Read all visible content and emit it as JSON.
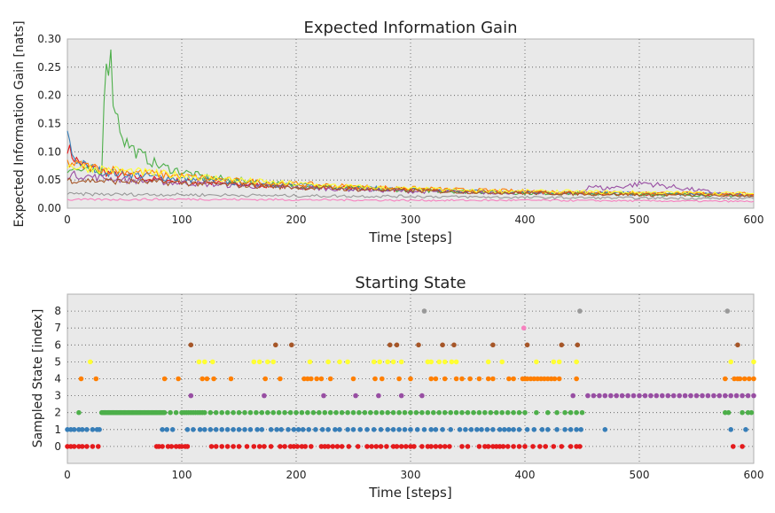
{
  "chart_data": [
    {
      "type": "line",
      "title": "Expected Information Gain",
      "xlabel": "Time [steps]",
      "ylabel": "Expected Information Gain [nats]",
      "xlim": [
        0,
        600
      ],
      "ylim": [
        0,
        0.3
      ],
      "x_ticks": [
        "0",
        "100",
        "200",
        "300",
        "400",
        "500",
        "600"
      ],
      "y_ticks": [
        "0.00",
        "0.05",
        "0.10",
        "0.15",
        "0.20",
        "0.25",
        "0.30"
      ],
      "grid": true,
      "series": [
        {
          "color": "#e41a1c",
          "points": [
            [
              0,
              0.11
            ],
            [
              5,
              0.09
            ],
            [
              15,
              0.075
            ],
            [
              40,
              0.06
            ],
            [
              80,
              0.05
            ],
            [
              150,
              0.042
            ],
            [
              250,
              0.035
            ],
            [
              350,
              0.03
            ],
            [
              450,
              0.027
            ],
            [
              550,
              0.024
            ],
            [
              600,
              0.023
            ]
          ]
        },
        {
          "color": "#377eb8",
          "points": [
            [
              0,
              0.145
            ],
            [
              3,
              0.1
            ],
            [
              10,
              0.08
            ],
            [
              30,
              0.065
            ],
            [
              80,
              0.055
            ],
            [
              150,
              0.045
            ],
            [
              250,
              0.036
            ],
            [
              350,
              0.03
            ],
            [
              450,
              0.027
            ],
            [
              550,
              0.025
            ],
            [
              600,
              0.024
            ]
          ]
        },
        {
          "color": "#4daf4a",
          "points": [
            [
              0,
              0.07
            ],
            [
              20,
              0.065
            ],
            [
              30,
              0.06
            ],
            [
              31,
              0.12
            ],
            [
              33,
              0.3
            ],
            [
              35,
              0.24
            ],
            [
              37,
              0.29
            ],
            [
              40,
              0.2
            ],
            [
              45,
              0.15
            ],
            [
              50,
              0.12
            ],
            [
              60,
              0.1
            ],
            [
              80,
              0.075
            ],
            [
              120,
              0.055
            ],
            [
              200,
              0.04
            ],
            [
              300,
              0.032
            ],
            [
              400,
              0.027
            ],
            [
              500,
              0.025
            ],
            [
              600,
              0.022
            ]
          ]
        },
        {
          "color": "#984ea3",
          "points": [
            [
              0,
              0.06
            ],
            [
              50,
              0.05
            ],
            [
              150,
              0.04
            ],
            [
              300,
              0.03
            ],
            [
              450,
              0.026
            ],
            [
              455,
              0.04
            ],
            [
              470,
              0.035
            ],
            [
              490,
              0.04
            ],
            [
              505,
              0.045
            ],
            [
              520,
              0.04
            ],
            [
              550,
              0.032
            ],
            [
              575,
              0.025
            ],
            [
              600,
              0.022
            ]
          ]
        },
        {
          "color": "#ff7f00",
          "points": [
            [
              0,
              0.08
            ],
            [
              30,
              0.07
            ],
            [
              80,
              0.06
            ],
            [
              150,
              0.048
            ],
            [
              250,
              0.038
            ],
            [
              350,
              0.032
            ],
            [
              450,
              0.028
            ],
            [
              550,
              0.026
            ],
            [
              600,
              0.025
            ]
          ]
        },
        {
          "color": "#ffff33",
          "points": [
            [
              0,
              0.075
            ],
            [
              40,
              0.068
            ],
            [
              100,
              0.058
            ],
            [
              180,
              0.045
            ],
            [
              260,
              0.037
            ],
            [
              350,
              0.031
            ],
            [
              450,
              0.029
            ],
            [
              550,
              0.027
            ],
            [
              600,
              0.026
            ]
          ]
        },
        {
          "color": "#a65628",
          "points": [
            [
              0,
              0.05
            ],
            [
              40,
              0.048
            ],
            [
              100,
              0.045
            ],
            [
              200,
              0.037
            ],
            [
              300,
              0.031
            ],
            [
              400,
              0.027
            ],
            [
              500,
              0.024
            ],
            [
              600,
              0.022
            ]
          ]
        },
        {
          "color": "#f781bf",
          "points": [
            [
              0,
              0.015
            ],
            [
              100,
              0.016
            ],
            [
              200,
              0.015
            ],
            [
              300,
              0.014
            ],
            [
              400,
              0.014
            ],
            [
              500,
              0.013
            ],
            [
              600,
              0.012
            ]
          ]
        },
        {
          "color": "#999999",
          "points": [
            [
              0,
              0.025
            ],
            [
              100,
              0.024
            ],
            [
              200,
              0.022
            ],
            [
              300,
              0.021
            ],
            [
              400,
              0.019
            ],
            [
              500,
              0.018
            ],
            [
              600,
              0.017
            ]
          ]
        }
      ]
    },
    {
      "type": "scatter",
      "title": "Starting State",
      "xlabel": "Time [steps]",
      "ylabel": "Sampled State [index]",
      "xlim": [
        0,
        600
      ],
      "ylim": [
        -1,
        9
      ],
      "x_ticks": [
        "0",
        "100",
        "200",
        "300",
        "400",
        "500",
        "600"
      ],
      "y_ticks": [
        "0",
        "1",
        "2",
        "3",
        "4",
        "5",
        "6",
        "7",
        "8"
      ],
      "grid": true,
      "states": [
        {
          "index": 0,
          "color": "#e41a1c",
          "x": [
            0,
            3,
            6,
            10,
            13,
            17,
            22,
            27,
            78,
            80,
            83,
            88,
            91,
            95,
            98,
            100,
            103,
            105,
            126,
            130,
            135,
            140,
            145,
            150,
            157,
            163,
            168,
            172,
            178,
            186,
            190,
            195,
            198,
            201,
            205,
            208,
            213,
            222,
            225,
            228,
            232,
            236,
            240,
            246,
            254,
            262,
            266,
            270,
            274,
            279,
            285,
            288,
            292,
            296,
            300,
            303,
            310,
            315,
            318,
            322,
            326,
            330,
            334,
            345,
            350,
            360,
            365,
            368,
            372,
            375,
            378,
            381,
            385,
            390,
            395,
            400,
            407,
            413,
            418,
            425,
            432,
            440,
            445,
            448,
            582,
            590
          ]
        },
        {
          "index": 1,
          "color": "#377eb8",
          "x": [
            0,
            3,
            6,
            10,
            13,
            17,
            22,
            26,
            28,
            83,
            87,
            92,
            105,
            110,
            116,
            120,
            125,
            130,
            135,
            140,
            145,
            150,
            155,
            160,
            166,
            170,
            178,
            183,
            187,
            193,
            198,
            202,
            206,
            211,
            217,
            223,
            228,
            234,
            238,
            245,
            250,
            256,
            262,
            268,
            274,
            280,
            285,
            290,
            295,
            300,
            306,
            312,
            318,
            322,
            328,
            335,
            343,
            348,
            353,
            358,
            362,
            367,
            372,
            378,
            382,
            386,
            390,
            395,
            402,
            408,
            415,
            420,
            428,
            435,
            440,
            445,
            449,
            470,
            580,
            593
          ]
        },
        {
          "index": 2,
          "color": "#4daf4a",
          "x": [
            10,
            30,
            31,
            32,
            33,
            34,
            35,
            36,
            37,
            38,
            39,
            40,
            41,
            42,
            43,
            44,
            45,
            46,
            47,
            48,
            49,
            50,
            51,
            52,
            53,
            54,
            55,
            56,
            57,
            58,
            59,
            60,
            61,
            62,
            63,
            64,
            65,
            66,
            67,
            68,
            69,
            70,
            71,
            72,
            73,
            74,
            75,
            76,
            77,
            78,
            79,
            80,
            81,
            82,
            83,
            84,
            85,
            90,
            95,
            100,
            102,
            104,
            106,
            108,
            110,
            112,
            114,
            116,
            118,
            120,
            125,
            130,
            135,
            140,
            145,
            150,
            155,
            160,
            165,
            170,
            175,
            180,
            185,
            190,
            195,
            200,
            205,
            210,
            215,
            220,
            225,
            230,
            235,
            240,
            245,
            250,
            255,
            260,
            265,
            270,
            275,
            280,
            285,
            290,
            295,
            300,
            305,
            310,
            315,
            320,
            325,
            330,
            335,
            340,
            345,
            350,
            355,
            360,
            365,
            370,
            375,
            380,
            385,
            390,
            395,
            400,
            410,
            420,
            428,
            435,
            440,
            445,
            450,
            575,
            578,
            590,
            595,
            598
          ]
        },
        {
          "index": 3,
          "color": "#984ea3",
          "x": [
            108,
            172,
            224,
            252,
            272,
            292,
            310,
            442,
            455,
            460,
            465,
            470,
            475,
            480,
            485,
            490,
            495,
            500,
            505,
            510,
            515,
            520,
            525,
            530,
            535,
            540,
            545,
            550,
            555,
            560,
            565,
            570,
            575,
            580,
            585,
            590,
            595,
            600
          ]
        },
        {
          "index": 4,
          "color": "#ff7f00",
          "x": [
            12,
            25,
            85,
            97,
            118,
            122,
            128,
            143,
            173,
            186,
            207,
            210,
            213,
            218,
            222,
            230,
            250,
            269,
            275,
            290,
            300,
            318,
            322,
            330,
            340,
            345,
            352,
            360,
            368,
            372,
            386,
            390,
            398,
            400,
            402,
            405,
            408,
            411,
            414,
            417,
            420,
            423,
            426,
            430,
            445,
            575,
            583,
            586,
            588,
            592,
            596,
            600
          ]
        },
        {
          "index": 5,
          "color": "#ffff33",
          "x": [
            20,
            115,
            120,
            127,
            163,
            168,
            175,
            180,
            212,
            228,
            238,
            245,
            268,
            273,
            280,
            285,
            292,
            315,
            318,
            325,
            330,
            336,
            340,
            368,
            380,
            410,
            425,
            430,
            445,
            580,
            600
          ]
        },
        {
          "index": 6,
          "color": "#a65628",
          "x": [
            108,
            182,
            196,
            282,
            288,
            307,
            328,
            338,
            372,
            402,
            432,
            446,
            586
          ]
        },
        {
          "index": 7,
          "color": "#f781bf",
          "x": [
            399
          ]
        },
        {
          "index": 8,
          "color": "#999999",
          "x": [
            312,
            448,
            577
          ]
        }
      ]
    }
  ]
}
